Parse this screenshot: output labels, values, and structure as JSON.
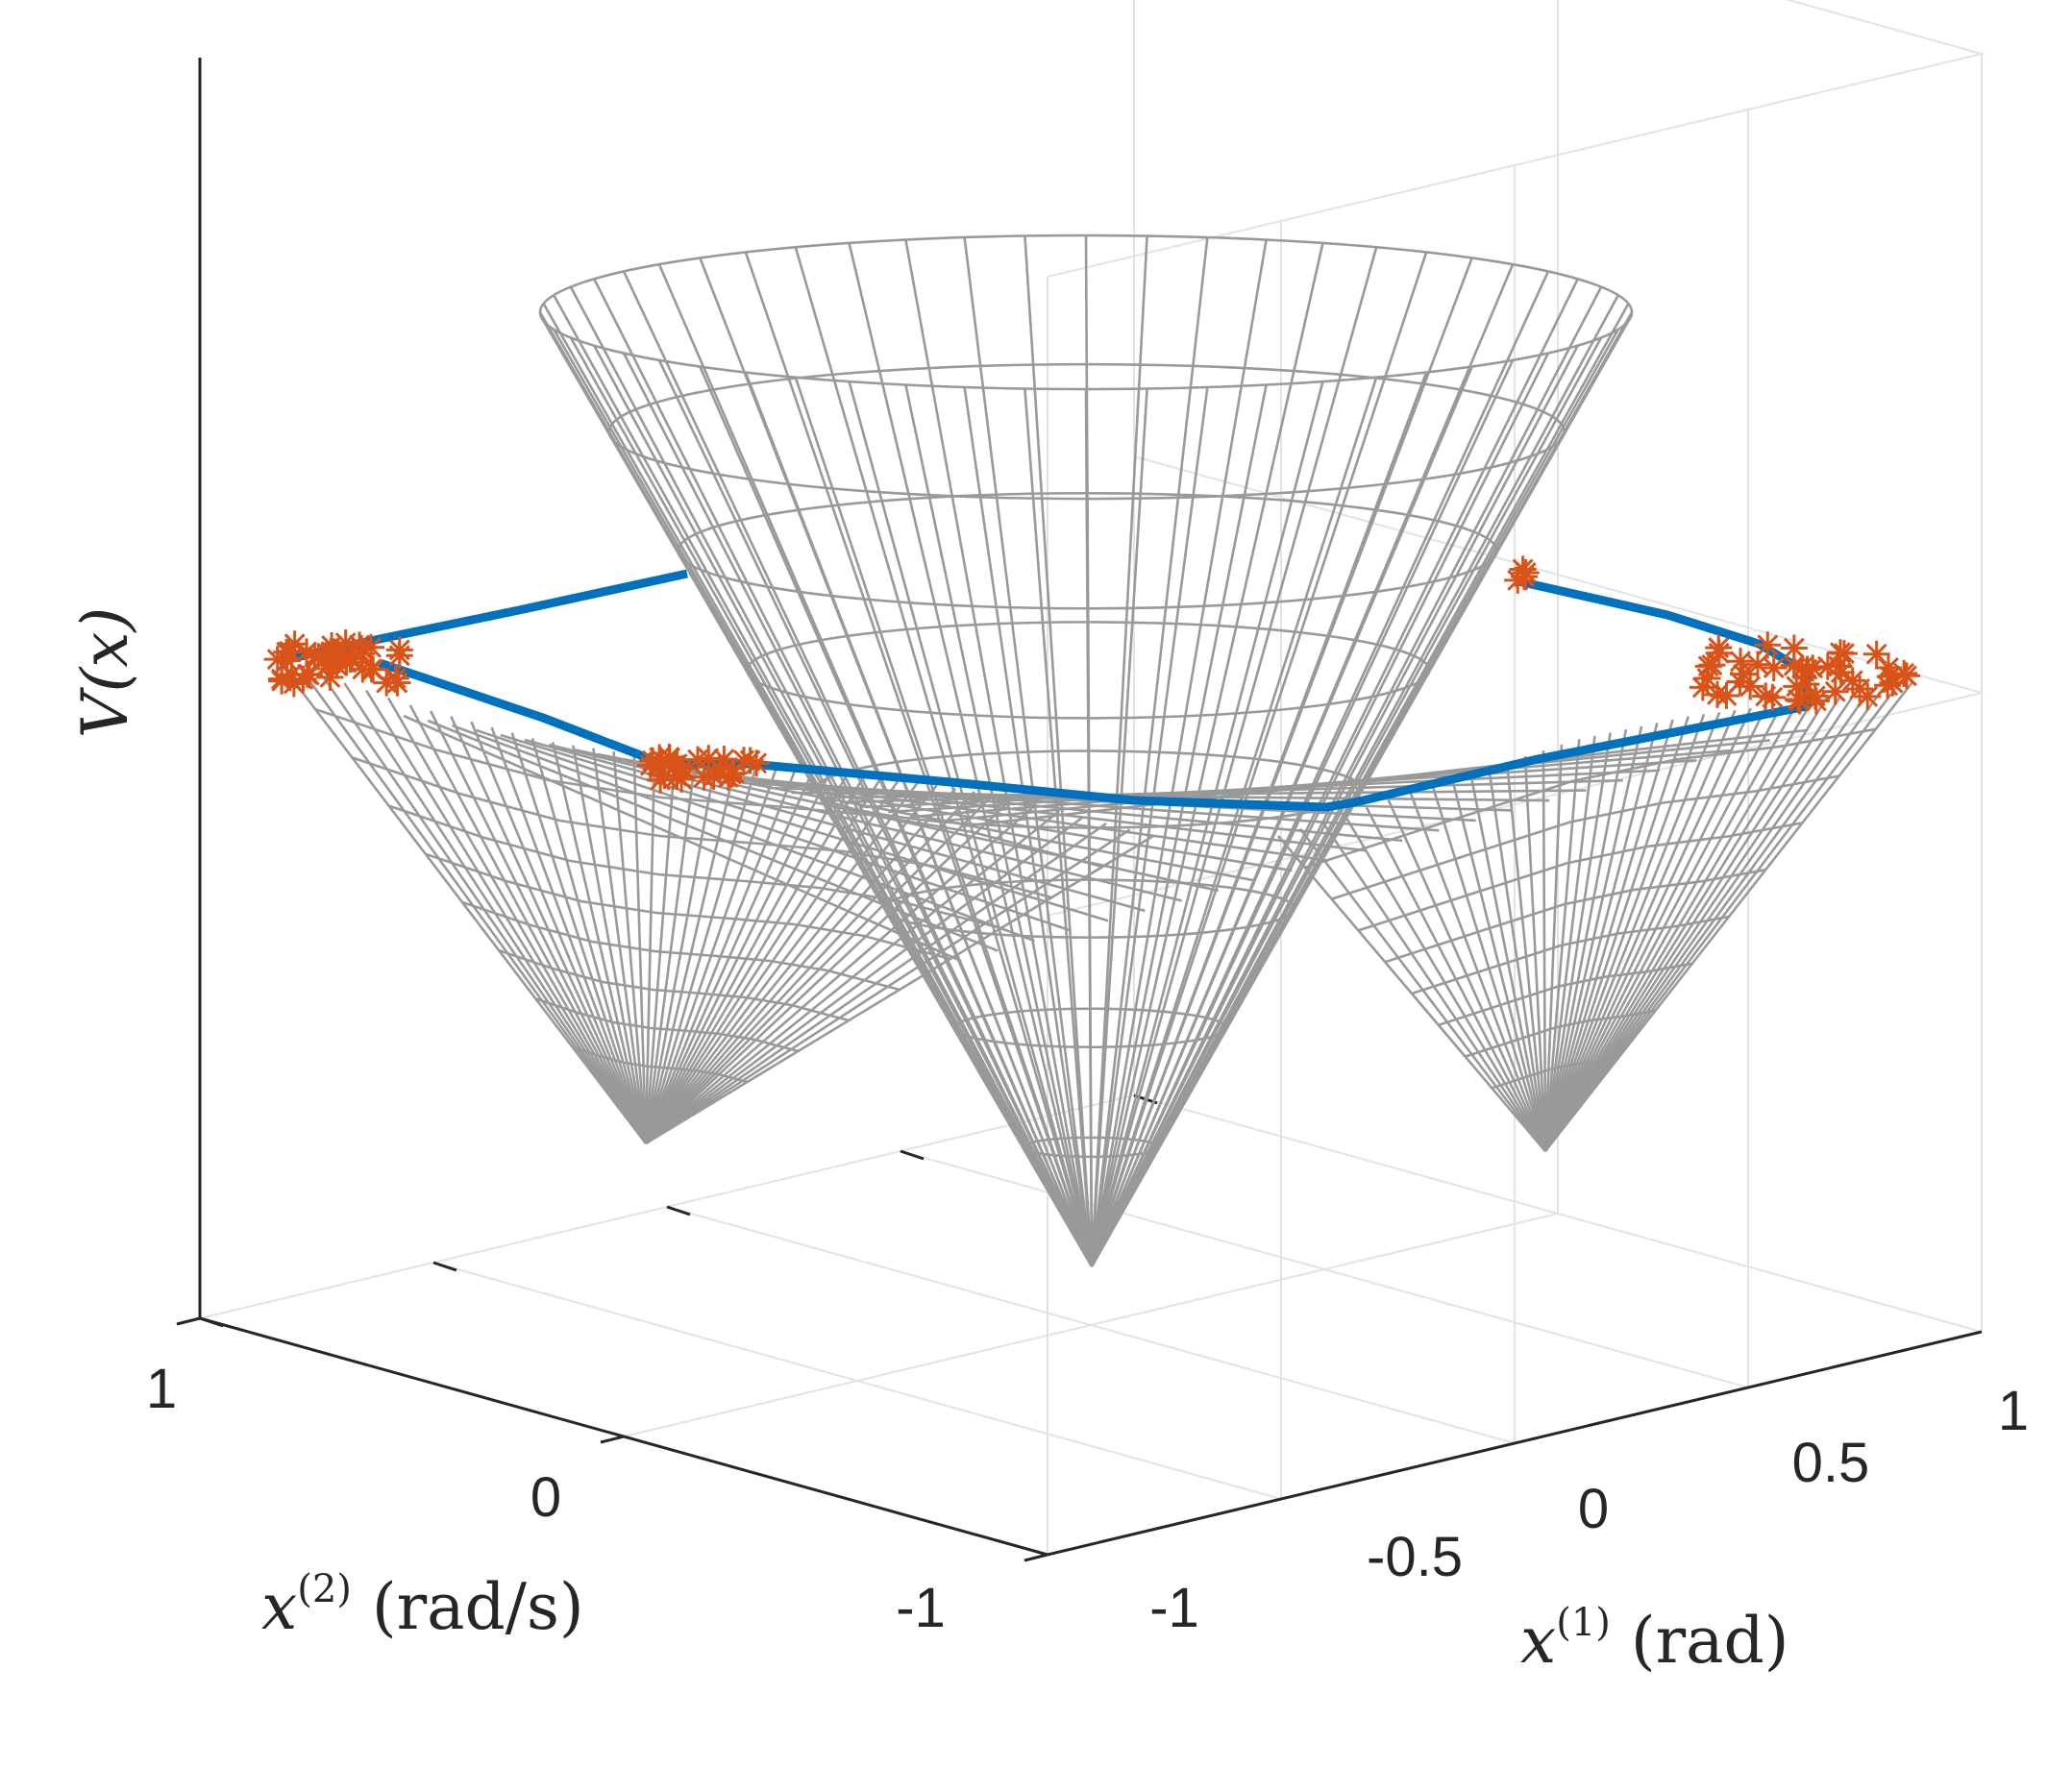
{
  "chart_data": {
    "type": "surface3d",
    "title": "",
    "zlabel_text": "V(x)",
    "xlabel": {
      "var": "x",
      "sup": "(1)",
      "unit": " (rad)"
    },
    "ylabel": {
      "var": "x",
      "sup": "(2)",
      "unit": " (rad/s)"
    },
    "xlim": [
      -1,
      1
    ],
    "ylim": [
      -1,
      1
    ],
    "x_ticks": [
      {
        "value": -1,
        "label": "-1"
      },
      {
        "value": -0.5,
        "label": "-0.5"
      },
      {
        "value": 0,
        "label": "0"
      },
      {
        "value": 0.5,
        "label": "0.5"
      },
      {
        "value": 1,
        "label": "1"
      }
    ],
    "y_ticks": [
      {
        "value": 1,
        "label": "1"
      },
      {
        "value": 0,
        "label": "0"
      },
      {
        "value": -1,
        "label": "-1"
      }
    ],
    "z_ticks": [],
    "grid": true,
    "series": [
      {
        "kind": "mesh",
        "color": "#999999"
      },
      {
        "kind": "level-set boundary",
        "color": "#0072BD"
      },
      {
        "kind": "markers",
        "marker": "*",
        "color": "#D95319"
      }
    ]
  }
}
